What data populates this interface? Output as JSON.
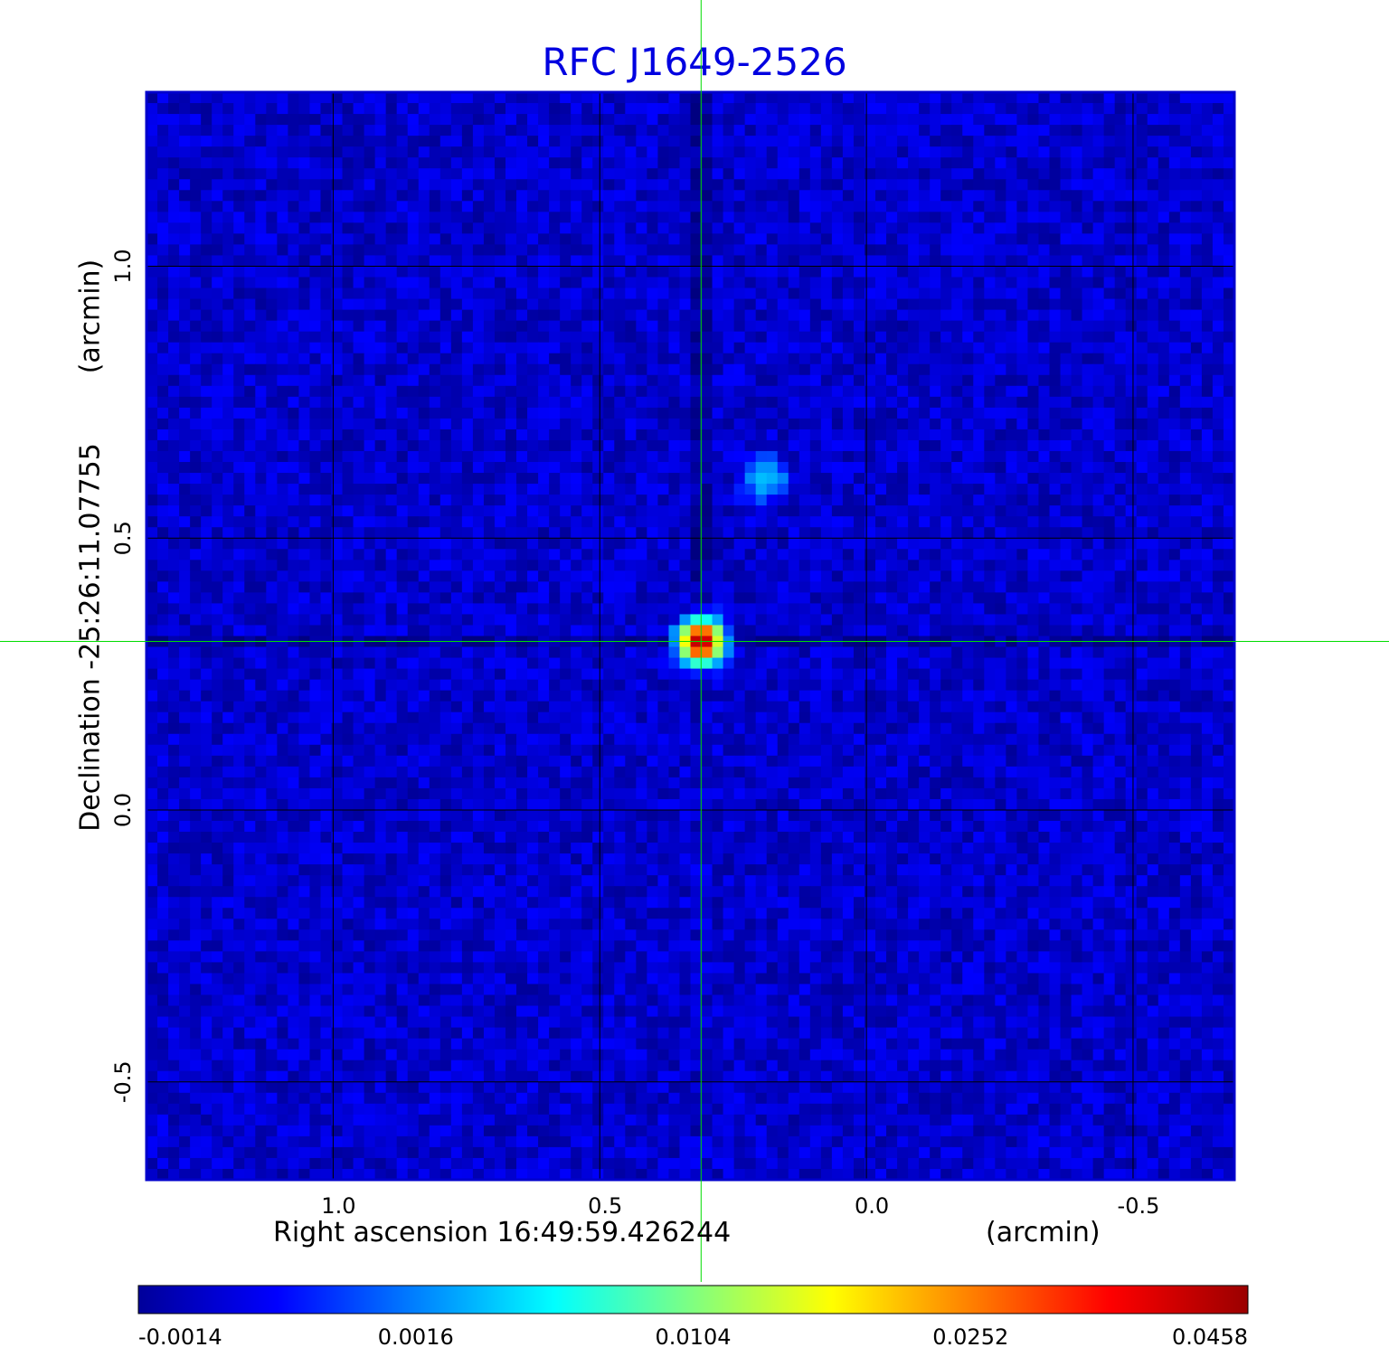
{
  "chart_data": {
    "type": "heatmap",
    "title": "RFC J1649-2526",
    "xlabel": "Right ascension  16:49:59.426244",
    "xunit": "(arcmin)",
    "ylabel": "Declination  -25:26:11.07755",
    "yunit": "(arcmin)",
    "xlim": [
      1.35,
      -0.69
    ],
    "ylim": [
      -0.68,
      1.32
    ],
    "x_ticks": [
      1.0,
      0.5,
      0.0,
      -0.5
    ],
    "x_tick_labels": [
      "1.0",
      "0.5",
      "0.0",
      "-0.5"
    ],
    "y_ticks": [
      1.0,
      0.5,
      0.0,
      -0.5
    ],
    "y_tick_labels": [
      "1.0",
      "0.5",
      "0.0",
      "-0.5"
    ],
    "grid": true,
    "crosshair": {
      "x": 0.31,
      "y": 0.31
    },
    "colormap": "jet",
    "colorbar": {
      "ticks": [
        -0.0014,
        0.0016,
        0.0104,
        0.0252,
        0.0458
      ],
      "tick_labels": [
        "-0.0014",
        "0.0016",
        "0.0104",
        "0.0252",
        "0.0458"
      ],
      "colors": [
        "#00009a",
        "#0000ff",
        "#0080ff",
        "#00ffff",
        "#80ff80",
        "#ffff00",
        "#ff8000",
        "#ff0000",
        "#9a0000"
      ]
    },
    "sources": [
      {
        "x": 0.31,
        "y": 0.31,
        "peak": 0.0458
      },
      {
        "x": 0.19,
        "y": 0.61,
        "peak": 0.004
      }
    ],
    "background_level": -0.0005
  },
  "colors": {
    "title": "#0000e0",
    "grid": "#000000",
    "crosshair": "#00dd00",
    "frame": "#0000cc"
  }
}
